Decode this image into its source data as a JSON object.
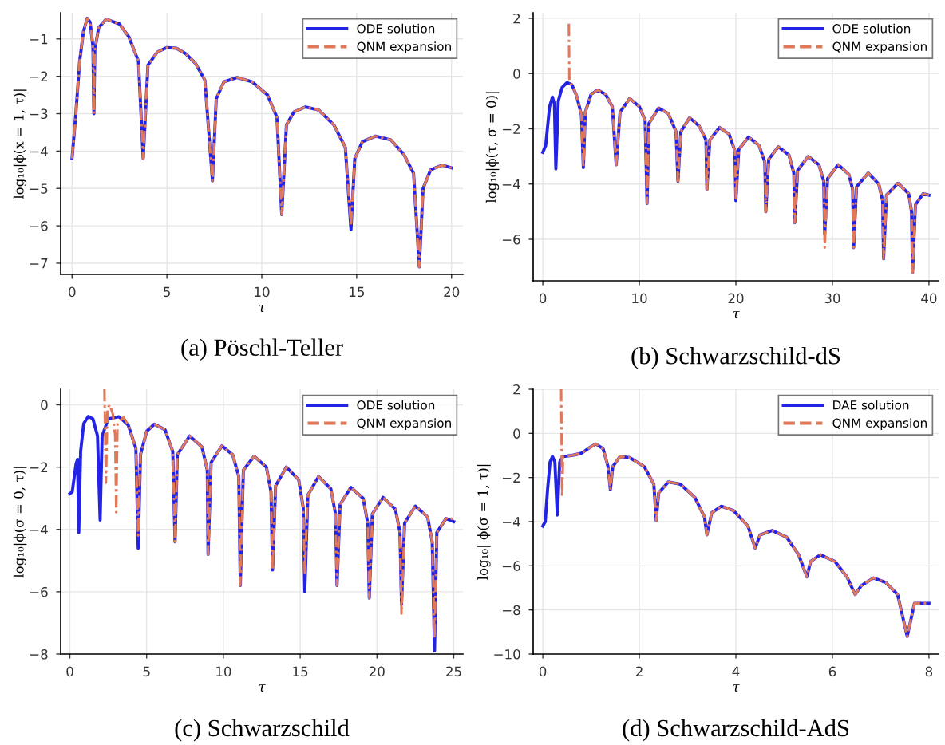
{
  "chart_data": [
    {
      "type": "line",
      "title": "(a) Pöschl-Teller",
      "xlabel": "τ",
      "ylabel": "log₁₀|ϕ(x = 1, τ)|",
      "xlim": [
        -0.6,
        20.6
      ],
      "ylim": [
        -7.3,
        -0.3
      ],
      "xticks": [
        0,
        5,
        10,
        15,
        20
      ],
      "yticks": [
        {
          "value": -7,
          "label": "−7"
        },
        {
          "value": -6,
          "label": "−6"
        },
        {
          "value": -5,
          "label": "−5"
        },
        {
          "value": -4,
          "label": "−4"
        },
        {
          "value": -3,
          "label": "−3"
        },
        {
          "value": -2,
          "label": "−2"
        },
        {
          "value": -1,
          "label": "−1"
        }
      ],
      "grid": true,
      "legend": "top right",
      "series": [
        {
          "name": "ODE solution",
          "color": "#2323e6",
          "line_style": "solid",
          "x": [
            0,
            0.2,
            0.4,
            0.6,
            0.8,
            0.95,
            1.1,
            1.15,
            1.2,
            1.4,
            1.8,
            2.5,
            3.0,
            3.5,
            3.75,
            4.0,
            4.5,
            5.0,
            5.5,
            6.0,
            6.5,
            7.0,
            7.4,
            7.6,
            8.0,
            8.7,
            9.5,
            10.3,
            10.8,
            11.05,
            11.3,
            11.7,
            12.3,
            13.0,
            13.8,
            14.4,
            14.7,
            14.9,
            15.3,
            16.0,
            16.8,
            17.5,
            18.0,
            18.3,
            18.5,
            18.9,
            19.5,
            20
          ],
          "values": [
            -4.2,
            -3.0,
            -1.6,
            -0.8,
            -0.45,
            -0.55,
            -1.2,
            -3.0,
            -1.3,
            -0.7,
            -0.47,
            -0.6,
            -0.95,
            -1.6,
            -4.2,
            -1.7,
            -1.35,
            -1.23,
            -1.25,
            -1.4,
            -1.65,
            -2.1,
            -4.8,
            -2.6,
            -2.15,
            -2.03,
            -2.15,
            -2.5,
            -3.1,
            -5.7,
            -3.3,
            -2.95,
            -2.82,
            -2.9,
            -3.3,
            -3.9,
            -6.1,
            -4.2,
            -3.75,
            -3.6,
            -3.7,
            -4.1,
            -4.6,
            -7.1,
            -5.0,
            -4.5,
            -4.38,
            -4.45
          ]
        },
        {
          "name": "QNM expansion",
          "color": "#e0795a",
          "line_style": "dashed",
          "x": [
            0,
            0.2,
            0.4,
            0.6,
            0.8,
            0.95,
            1.1,
            1.15,
            1.2,
            1.4,
            1.8,
            2.5,
            3.0,
            3.5,
            3.75,
            4.0,
            4.5,
            5.0,
            5.5,
            6.0,
            6.5,
            7.0,
            7.4,
            7.6,
            8.0,
            8.7,
            9.5,
            10.3,
            10.8,
            11.05,
            11.3,
            11.7,
            12.3,
            13.0,
            13.8,
            14.4,
            14.7,
            14.9,
            15.3,
            16.0,
            16.8,
            17.5,
            18.0,
            18.3,
            18.5,
            18.9,
            19.5,
            20
          ],
          "values": [
            -4.2,
            -3.0,
            -1.6,
            -0.8,
            -0.45,
            -0.55,
            -1.2,
            -3.0,
            -1.3,
            -0.7,
            -0.47,
            -0.6,
            -0.95,
            -1.6,
            -4.2,
            -1.7,
            -1.35,
            -1.23,
            -1.25,
            -1.4,
            -1.65,
            -2.1,
            -4.8,
            -2.6,
            -2.15,
            -2.03,
            -2.15,
            -2.5,
            -3.1,
            -5.7,
            -3.3,
            -2.95,
            -2.82,
            -2.9,
            -3.3,
            -3.9,
            -6.0,
            -4.2,
            -3.75,
            -3.6,
            -3.7,
            -4.1,
            -4.6,
            -7.1,
            -5.0,
            -4.5,
            -4.38,
            -4.45
          ]
        }
      ]
    },
    {
      "type": "line",
      "title": "(b) Schwarzschild-dS",
      "xlabel": "τ",
      "ylabel": "log₁₀|ϕ(τ, σ = 0)|",
      "xlim": [
        -1,
        41
      ],
      "ylim": [
        -7.5,
        2.2
      ],
      "xticks": [
        0,
        10,
        20,
        30,
        40
      ],
      "yticks": [
        {
          "value": -6,
          "label": "−6"
        },
        {
          "value": -4,
          "label": "−4"
        },
        {
          "value": -2,
          "label": "−2"
        },
        0,
        2
      ],
      "grid": true,
      "legend": "top right",
      "series": [
        {
          "name": "ODE solution",
          "color": "#2323e6",
          "line_style": "solid",
          "x": [
            0,
            0.3,
            0.7,
            1.0,
            1.2,
            1.35,
            1.6,
            2.0,
            2.5,
            3.0,
            3.5,
            4.0,
            4.2,
            4.4,
            5.0,
            5.7,
            6.5,
            7.2,
            7.6,
            8.0,
            9.0,
            10.0,
            10.6,
            10.8,
            11.0,
            12.0,
            13.0,
            13.8,
            14.0,
            14.3,
            15.2,
            16.2,
            16.9,
            17.0,
            17.3,
            18.3,
            19.3,
            19.9,
            20.0,
            20.3,
            21.3,
            22.4,
            23.0,
            23.1,
            23.4,
            24.4,
            25.5,
            26.0,
            26.1,
            26.4,
            27.5,
            28.6,
            29.1,
            29.2,
            29.5,
            30.6,
            31.7,
            32.1,
            32.2,
            32.5,
            33.7,
            34.8,
            35.2,
            35.3,
            35.6,
            36.8,
            37.9,
            38.2,
            38.3,
            38.6,
            39.4,
            40
          ],
          "values": [
            -2.85,
            -2.6,
            -1.2,
            -0.85,
            -1.1,
            -3.45,
            -1.0,
            -0.5,
            -0.33,
            -0.4,
            -0.8,
            -1.5,
            -3.4,
            -1.4,
            -0.75,
            -0.6,
            -0.75,
            -1.2,
            -3.3,
            -1.4,
            -0.9,
            -1.2,
            -1.7,
            -4.7,
            -1.8,
            -1.25,
            -1.45,
            -2.1,
            -3.9,
            -2.1,
            -1.6,
            -1.9,
            -2.4,
            -4.2,
            -2.4,
            -1.95,
            -2.2,
            -2.8,
            -4.6,
            -2.75,
            -2.3,
            -2.6,
            -3.2,
            -5.0,
            -3.1,
            -2.65,
            -2.95,
            -3.6,
            -5.4,
            -3.5,
            -3.0,
            -3.3,
            -3.9,
            -5.8,
            -3.8,
            -3.3,
            -3.65,
            -4.2,
            -6.3,
            -4.1,
            -3.6,
            -4.0,
            -4.6,
            -6.7,
            -4.4,
            -3.97,
            -4.35,
            -5.0,
            -7.2,
            -4.75,
            -4.35,
            -4.4
          ]
        },
        {
          "name": "QNM expansion",
          "color": "#e0795a",
          "line_style": "dashed",
          "x": [
            2.7,
            2.75,
            2.9,
            3.0,
            3.5,
            4.0,
            4.2,
            4.4,
            5.0,
            5.7,
            6.5,
            7.2,
            7.6,
            8.0,
            9.0,
            10.0,
            10.6,
            10.8,
            11.0,
            12.0,
            13.0,
            13.8,
            14.0,
            14.3,
            15.2,
            16.2,
            16.9,
            17.0,
            17.3,
            18.3,
            19.3,
            19.9,
            20.0,
            20.3,
            21.3,
            22.4,
            23.0,
            23.1,
            23.4,
            24.4,
            25.5,
            26.0,
            26.1,
            26.4,
            27.5,
            28.6,
            29.1,
            29.2,
            29.5,
            30.6,
            31.7,
            32.1,
            32.2,
            32.5,
            33.7,
            34.8,
            35.2,
            35.3,
            35.6,
            36.8,
            37.9,
            38.2,
            38.3,
            38.6,
            39.4,
            40
          ],
          "values": [
            1.8,
            -0.2,
            -0.38,
            -0.4,
            -0.8,
            -1.5,
            -3.4,
            -1.4,
            -0.75,
            -0.6,
            -0.75,
            -1.2,
            -3.3,
            -1.4,
            -0.9,
            -1.2,
            -1.7,
            -4.7,
            -1.8,
            -1.25,
            -1.45,
            -2.1,
            -3.9,
            -2.1,
            -1.6,
            -1.9,
            -2.4,
            -4.2,
            -2.4,
            -1.95,
            -2.2,
            -2.8,
            -4.6,
            -2.75,
            -2.3,
            -2.6,
            -3.2,
            -5.0,
            -3.1,
            -2.65,
            -2.95,
            -3.6,
            -5.4,
            -3.5,
            -3.0,
            -3.3,
            -3.9,
            -6.3,
            -3.8,
            -3.3,
            -3.65,
            -4.2,
            -6.3,
            -4.1,
            -3.6,
            -4.0,
            -4.6,
            -6.7,
            -4.4,
            -3.97,
            -4.35,
            -5.0,
            -7.2,
            -4.75,
            -4.35,
            -4.4
          ]
        }
      ]
    },
    {
      "type": "line",
      "title": "(c) Schwarzschild",
      "xlabel": "τ",
      "ylabel": "log₁₀|ϕ(σ = 0, τ)|",
      "xlim": [
        -0.6,
        25.6
      ],
      "ylim": [
        -8,
        0.5
      ],
      "xticks": [
        0,
        5,
        10,
        15,
        20,
        25
      ],
      "yticks": [
        {
          "value": -8,
          "label": "−8"
        },
        {
          "value": -6,
          "label": "−6"
        },
        {
          "value": -4,
          "label": "−4"
        },
        {
          "value": -2,
          "label": "−2"
        },
        0
      ],
      "grid": true,
      "legend": "top right",
      "series": [
        {
          "name": "ODE solution",
          "color": "#2323e6",
          "line_style": "solid",
          "x": [
            0,
            0.15,
            0.4,
            0.5,
            0.58,
            0.7,
            0.9,
            1.2,
            1.5,
            1.8,
            1.97,
            2.1,
            2.5,
            3.2,
            3.8,
            4.3,
            4.45,
            4.6,
            5.0,
            5.5,
            6.2,
            6.7,
            6.85,
            7.0,
            7.8,
            8.6,
            8.95,
            9.0,
            9.2,
            9.9,
            10.6,
            11.0,
            11.1,
            11.3,
            12.0,
            12.8,
            13.1,
            13.2,
            13.4,
            14.1,
            14.9,
            15.2,
            15.3,
            15.5,
            16.2,
            17.0,
            17.3,
            17.4,
            17.6,
            18.3,
            19.1,
            19.4,
            19.5,
            19.7,
            20.4,
            21.2,
            21.5,
            21.6,
            21.8,
            22.5,
            23.3,
            23.6,
            23.75,
            23.9,
            24.5,
            25
          ],
          "values": [
            -2.85,
            -2.8,
            -1.9,
            -1.75,
            -4.1,
            -1.5,
            -0.6,
            -0.37,
            -0.45,
            -1.0,
            -3.7,
            -1.0,
            -0.45,
            -0.38,
            -0.65,
            -1.4,
            -4.6,
            -1.6,
            -0.85,
            -0.62,
            -0.8,
            -1.5,
            -4.4,
            -1.6,
            -1.0,
            -1.35,
            -2.1,
            -4.8,
            -1.85,
            -1.32,
            -1.6,
            -2.3,
            -5.8,
            -2.1,
            -1.65,
            -2.0,
            -2.8,
            -5.3,
            -2.6,
            -2.0,
            -2.4,
            -3.3,
            -6.0,
            -2.9,
            -2.3,
            -2.7,
            -3.5,
            -5.8,
            -3.2,
            -2.65,
            -3.0,
            -3.8,
            -6.2,
            -3.5,
            -2.97,
            -3.35,
            -4.1,
            -6.4,
            -3.8,
            -3.25,
            -3.6,
            -4.4,
            -7.9,
            -4.1,
            -3.65,
            -3.75
          ]
        },
        {
          "name": "QNM expansion",
          "color": "#e0795a",
          "line_style": "dashed",
          "x": [
            2.25,
            2.35,
            2.45,
            2.6,
            2.8,
            2.95,
            3.02,
            3.1,
            3.5,
            3.8,
            4.3,
            4.45,
            4.6,
            5.0,
            5.5,
            6.2,
            6.7,
            6.85,
            7.0,
            7.8,
            8.6,
            8.95,
            9.0,
            9.2,
            9.9,
            10.6,
            11.0,
            11.1,
            11.3,
            12.0,
            12.8,
            13.1,
            13.2,
            13.4,
            14.1,
            14.9,
            15.2,
            15.3,
            15.5,
            16.2,
            17.0,
            17.3,
            17.4,
            17.6,
            18.3,
            19.1,
            19.4,
            19.5,
            19.7,
            20.4,
            21.2,
            21.5,
            21.6,
            21.8,
            22.5,
            23.3,
            23.6,
            23.75,
            23.9,
            24.5,
            24.7,
            25
          ],
          "values": [
            0.5,
            -2.5,
            -0.1,
            0.0,
            -0.3,
            -1.0,
            -3.45,
            -0.6,
            -0.4,
            -0.65,
            -1.4,
            -4.2,
            -1.6,
            -0.85,
            -0.62,
            -0.8,
            -1.5,
            -4.4,
            -1.6,
            -1.0,
            -1.35,
            -2.1,
            -4.8,
            -1.85,
            -1.32,
            -1.6,
            -2.3,
            -5.8,
            -2.1,
            -1.65,
            -2.0,
            -2.8,
            -5.3,
            -2.6,
            -2.0,
            -2.4,
            -3.3,
            -5.4,
            -2.9,
            -2.3,
            -2.7,
            -3.5,
            -5.8,
            -3.2,
            -2.65,
            -3.0,
            -3.8,
            -6.2,
            -3.5,
            -2.97,
            -3.35,
            -4.1,
            -6.7,
            -3.8,
            -3.25,
            -3.6,
            -4.4,
            -7.5,
            -4.1,
            -3.65,
            -3.6,
            -3.7
          ]
        }
      ]
    },
    {
      "type": "line",
      "title": "(d) Schwarzschild-AdS",
      "xlabel": "τ",
      "ylabel": "log₁₀| ϕ(σ = 1, τ)|",
      "xlim": [
        -0.2,
        8.2
      ],
      "ylim": [
        -10,
        2
      ],
      "xticks": [
        0,
        2,
        4,
        6,
        8
      ],
      "yticks": [
        {
          "value": -10,
          "label": "−10"
        },
        {
          "value": -8,
          "label": "−8"
        },
        {
          "value": -6,
          "label": "−6"
        },
        {
          "value": -4,
          "label": "−4"
        },
        {
          "value": -2,
          "label": "−2"
        },
        0,
        2
      ],
      "grid": true,
      "legend": "top right",
      "series": [
        {
          "name": "DAE solution",
          "color": "#2323e6",
          "line_style": "solid",
          "x": [
            0,
            0.05,
            0.1,
            0.15,
            0.2,
            0.25,
            0.3,
            0.35,
            0.42,
            0.6,
            0.8,
            1.0,
            1.1,
            1.25,
            1.35,
            1.4,
            1.45,
            1.6,
            1.8,
            2.1,
            2.3,
            2.35,
            2.4,
            2.6,
            2.85,
            3.15,
            3.35,
            3.4,
            3.5,
            3.7,
            3.95,
            4.25,
            4.4,
            4.5,
            4.75,
            5.05,
            5.3,
            5.47,
            5.55,
            5.75,
            6.05,
            6.3,
            6.47,
            6.6,
            6.85,
            7.1,
            7.35,
            7.55,
            7.7,
            8
          ],
          "values": [
            -4.2,
            -4.0,
            -2.5,
            -1.3,
            -1.05,
            -1.3,
            -3.7,
            -1.3,
            -1.05,
            -1.0,
            -0.9,
            -0.6,
            -0.48,
            -0.7,
            -1.5,
            -2.55,
            -1.5,
            -1.05,
            -1.1,
            -1.5,
            -2.3,
            -3.95,
            -2.7,
            -2.2,
            -2.3,
            -2.9,
            -3.8,
            -4.6,
            -3.6,
            -3.3,
            -3.5,
            -4.2,
            -5.2,
            -4.6,
            -4.4,
            -4.7,
            -5.5,
            -6.5,
            -5.8,
            -5.5,
            -5.8,
            -6.5,
            -7.3,
            -6.9,
            -6.55,
            -6.75,
            -7.3,
            -9.2,
            -7.7,
            -7.7
          ]
        },
        {
          "name": "QNM expansion",
          "color": "#e0795a",
          "line_style": "dashed",
          "x": [
            0.38,
            0.4,
            0.42,
            0.6,
            0.8,
            1.0,
            1.1,
            1.25,
            1.35,
            1.4,
            1.45,
            1.6,
            1.8,
            2.1,
            2.3,
            2.35,
            2.4,
            2.6,
            2.85,
            3.15,
            3.35,
            3.4,
            3.5,
            3.7,
            3.95,
            4.25,
            4.4,
            4.5,
            4.75,
            5.05,
            5.3,
            5.47,
            5.55,
            5.75,
            6.05,
            6.3,
            6.47,
            6.6,
            6.85,
            7.1,
            7.35,
            7.55,
            7.7,
            8
          ],
          "values": [
            2.0,
            -2.9,
            -1.05,
            -1.0,
            -0.9,
            -0.6,
            -0.48,
            -0.7,
            -1.5,
            -2.55,
            -1.5,
            -1.05,
            -1.1,
            -1.5,
            -2.3,
            -3.95,
            -2.7,
            -2.2,
            -2.3,
            -2.9,
            -3.8,
            -4.6,
            -3.6,
            -3.3,
            -3.5,
            -4.2,
            -5.2,
            -4.6,
            -4.4,
            -4.7,
            -5.5,
            -6.5,
            -5.8,
            -5.5,
            -5.8,
            -6.5,
            -7.3,
            -6.9,
            -6.55,
            -6.75,
            -7.3,
            -9.2,
            -7.7,
            -7.7
          ]
        }
      ]
    }
  ]
}
